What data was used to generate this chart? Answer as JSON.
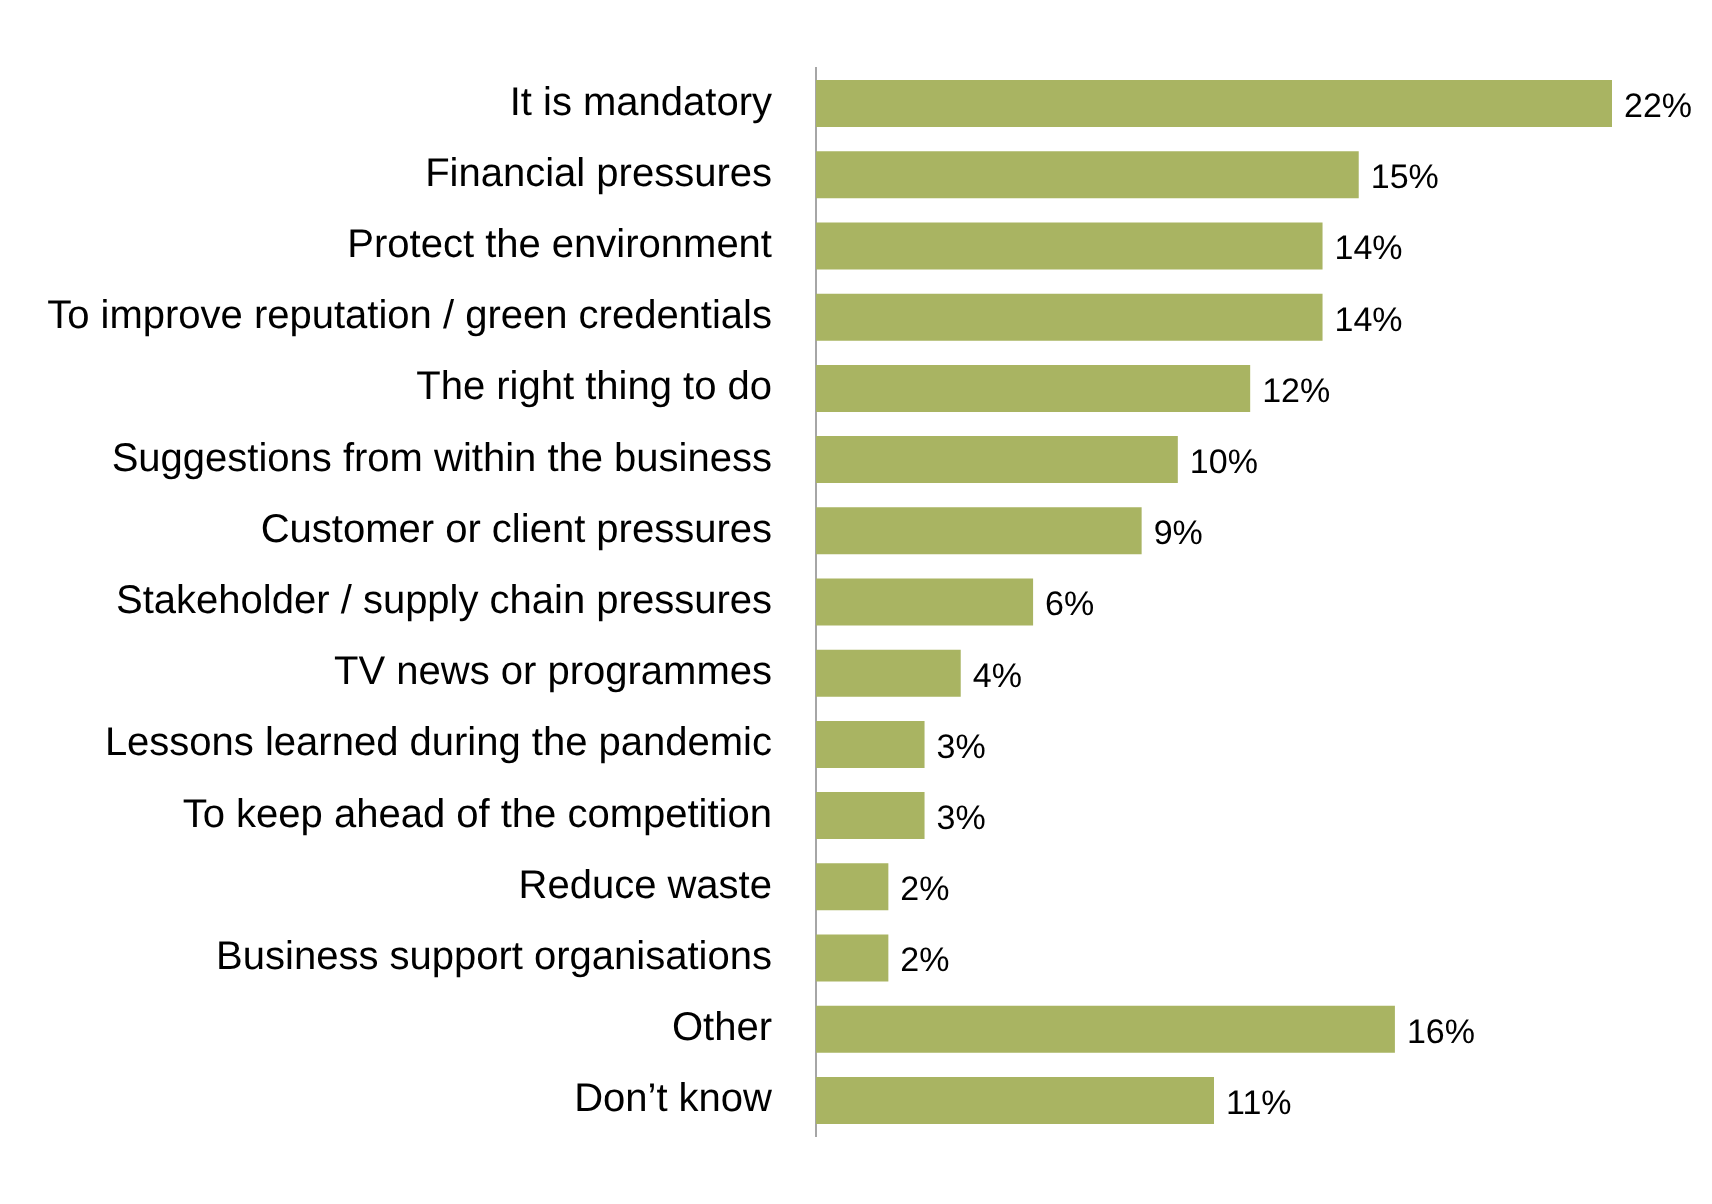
{
  "chart_data": {
    "type": "bar",
    "orientation": "horizontal",
    "categories": [
      "It is mandatory",
      "Financial pressures",
      "Protect the environment",
      "To improve reputation / green credentials",
      "The right thing to do",
      "Suggestions from within the business",
      "Customer or client pressures",
      "Stakeholder / supply chain pressures",
      "TV news or programmes",
      "Lessons learned during the pandemic",
      "To keep ahead of the competition",
      "Reduce waste",
      "Business support organisations",
      "Other",
      "Don’t know"
    ],
    "values": [
      22,
      15,
      14,
      14,
      12,
      10,
      9,
      6,
      4,
      3,
      3,
      2,
      2,
      16,
      11
    ],
    "value_labels": [
      "22%",
      "15%",
      "14%",
      "14%",
      "12%",
      "10%",
      "9%",
      "6%",
      "4%",
      "3%",
      "3%",
      "2%",
      "2%",
      "16%",
      "11%"
    ],
    "color": "#a9b462",
    "legend": false
  }
}
